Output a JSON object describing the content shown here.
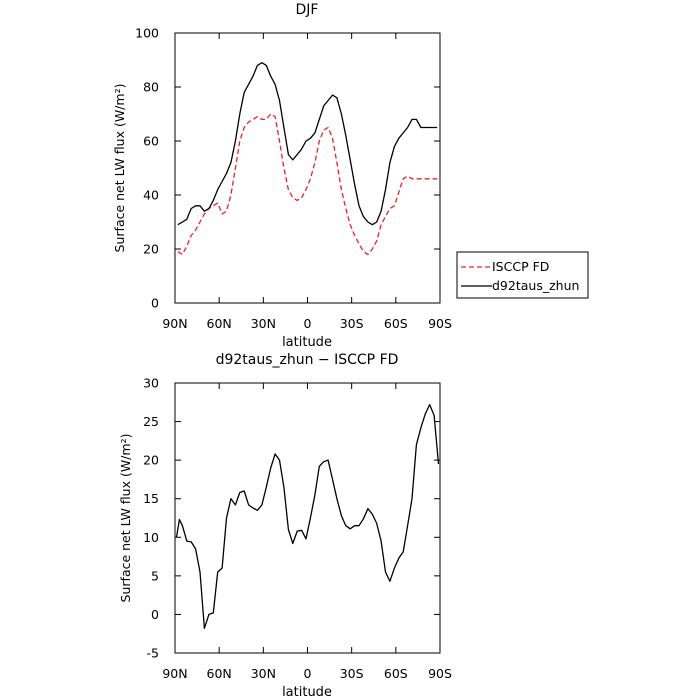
{
  "chart_data": [
    {
      "type": "line",
      "title": "DJF",
      "xlabel": "latitude",
      "ylabel": "Surface net LW flux (W/m²)",
      "xlim": [
        90,
        -90
      ],
      "ylim": [
        0,
        100
      ],
      "xticks": [
        {
          "value": 90,
          "label": "90N"
        },
        {
          "value": 60,
          "label": "60N"
        },
        {
          "value": 30,
          "label": "30N"
        },
        {
          "value": 0,
          "label": "0"
        },
        {
          "value": -30,
          "label": "30S"
        },
        {
          "value": -60,
          "label": "60S"
        },
        {
          "value": -90,
          "label": "90S"
        }
      ],
      "yticks": [
        0,
        20,
        40,
        60,
        80,
        100
      ],
      "legend_position": "right",
      "series": [
        {
          "name": "ISCCP FD",
          "color": "#e8212b",
          "dash": "dashed",
          "x": [
            88,
            85,
            82,
            79,
            76,
            73,
            70,
            67,
            64,
            61,
            58,
            55,
            52,
            49,
            46,
            43,
            40,
            37,
            34,
            31,
            28,
            25,
            22,
            19,
            16,
            13,
            10,
            7,
            4,
            1,
            -2,
            -5,
            -8,
            -11,
            -14,
            -17,
            -20,
            -23,
            -26,
            -29,
            -32,
            -35,
            -38,
            -41,
            -44,
            -47,
            -50,
            -53,
            -56,
            -59,
            -62,
            -65,
            -68,
            -71,
            -74,
            -77,
            -80,
            -83,
            -86,
            -88
          ],
          "y": [
            19,
            18,
            21,
            25,
            27,
            30,
            33,
            35,
            36,
            37,
            33,
            34,
            40,
            50,
            60,
            65,
            67,
            68,
            69,
            68,
            68,
            70,
            69,
            60,
            50,
            42,
            39,
            38,
            39,
            42,
            46,
            52,
            60,
            64,
            65,
            61,
            52,
            42,
            35,
            29,
            25,
            22,
            19,
            18,
            20,
            23,
            29,
            32,
            35,
            36,
            41,
            46,
            47,
            46,
            46,
            46,
            46,
            46,
            46,
            46
          ]
        },
        {
          "name": "d92taus_zhun",
          "color": "#000000",
          "dash": "solid",
          "x": [
            88,
            85,
            82,
            79,
            76,
            73,
            70,
            67,
            64,
            61,
            58,
            55,
            52,
            49,
            46,
            43,
            40,
            37,
            34,
            31,
            28,
            25,
            22,
            19,
            16,
            13,
            10,
            7,
            4,
            1,
            -2,
            -5,
            -8,
            -11,
            -14,
            -17,
            -20,
            -23,
            -26,
            -29,
            -32,
            -35,
            -38,
            -41,
            -44,
            -47,
            -50,
            -53,
            -56,
            -59,
            -62,
            -65,
            -68,
            -71,
            -74,
            -77,
            -80,
            -83,
            -86,
            -88
          ],
          "y": [
            29,
            30,
            31,
            35,
            36,
            36,
            34,
            35,
            38,
            42,
            45,
            48,
            52,
            60,
            70,
            78,
            81,
            84,
            88,
            89,
            88,
            84,
            81,
            75,
            65,
            55,
            53,
            55,
            57,
            60,
            61,
            63,
            68,
            73,
            75,
            77,
            76,
            70,
            62,
            53,
            44,
            36,
            32,
            30,
            29,
            30,
            34,
            42,
            52,
            58,
            61,
            63,
            65,
            68,
            68,
            65,
            65,
            65,
            65,
            65
          ]
        }
      ]
    },
    {
      "type": "line",
      "title": "d92taus_zhun − ISCCP FD",
      "xlabel": "latitude",
      "ylabel": "Surface net LW flux (W/m²)",
      "xlim": [
        90,
        -90
      ],
      "ylim": [
        -5,
        30
      ],
      "xticks": [
        {
          "value": 90,
          "label": "90N"
        },
        {
          "value": 60,
          "label": "60N"
        },
        {
          "value": 30,
          "label": "30N"
        },
        {
          "value": 0,
          "label": "0"
        },
        {
          "value": -30,
          "label": "30S"
        },
        {
          "value": -60,
          "label": "60S"
        },
        {
          "value": -90,
          "label": "90S"
        }
      ],
      "yticks": [
        -5,
        0,
        5,
        10,
        15,
        20,
        25,
        30
      ],
      "series": [
        {
          "color": "#000000",
          "dash": "solid",
          "x": [
            89,
            87,
            85,
            82,
            79,
            76,
            73,
            70,
            67,
            64,
            61,
            58,
            55,
            52,
            49,
            46,
            43,
            40,
            37,
            34,
            31,
            28,
            25,
            22,
            19,
            16,
            13,
            10,
            7,
            4,
            1,
            -2,
            -5,
            -8,
            -11,
            -14,
            -17,
            -20,
            -23,
            -26,
            -29,
            -32,
            -35,
            -38,
            -41,
            -44,
            -47,
            -50,
            -53,
            -56,
            -59,
            -62,
            -65,
            -68,
            -71,
            -74,
            -77,
            -80,
            -83,
            -86,
            -89
          ],
          "y": [
            10,
            12.3,
            11.5,
            9.5,
            9.4,
            8.5,
            5.5,
            -1.8,
            0,
            0.2,
            5.5,
            6,
            12.5,
            15,
            14.2,
            15.8,
            16,
            14.2,
            13.8,
            13.5,
            14.2,
            16.5,
            19,
            20.8,
            20,
            16.5,
            11,
            9.2,
            10.8,
            10.9,
            9.8,
            12.5,
            15.5,
            19.2,
            19.8,
            20,
            17.5,
            15,
            12.8,
            11.5,
            11.1,
            11.5,
            11.5,
            12.4,
            13.7,
            13,
            11.8,
            9.5,
            5.5,
            4.3,
            6,
            7.3,
            8.1,
            11.5,
            15,
            22,
            24.2,
            26,
            27.2,
            25.8,
            19.5
          ]
        }
      ]
    }
  ]
}
